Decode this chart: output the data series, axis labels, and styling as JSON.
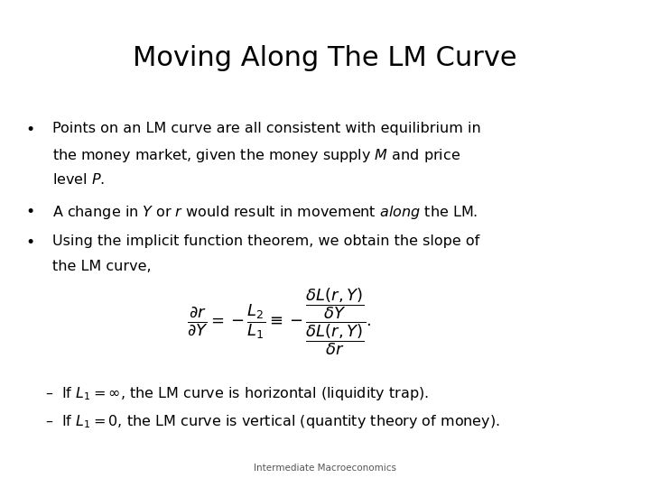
{
  "title": "Moving Along The LM Curve",
  "title_fontsize": 22,
  "background_color": "#ffffff",
  "text_color": "#000000",
  "footer": "Intermediate Macroeconomics",
  "footer_fontsize": 7.5,
  "bullet1_line1": "Points on an LM curve are all consistent with equilibrium in",
  "bullet1_line2": "the money market, given the money supply $\\mathit{M}$ and price",
  "bullet1_line3": "level $\\mathit{P}$.",
  "bullet2": "A change in $\\mathit{Y}$ or $\\mathit{r}$ would result in movement $\\mathit{along}$ the LM.",
  "bullet3_line1": "Using the implicit function theorem, we obtain the slope of",
  "bullet3_line2": "the LM curve,",
  "sub1": "–  If $L_1 = \\infty$, the LM curve is horizontal (liquidity trap).",
  "sub2": "–  If $L_1 = 0$, the LM curve is vertical (quantity theory of money).",
  "body_fontsize": 11.5,
  "sub_fontsize": 11.5,
  "math_fontsize": 13
}
